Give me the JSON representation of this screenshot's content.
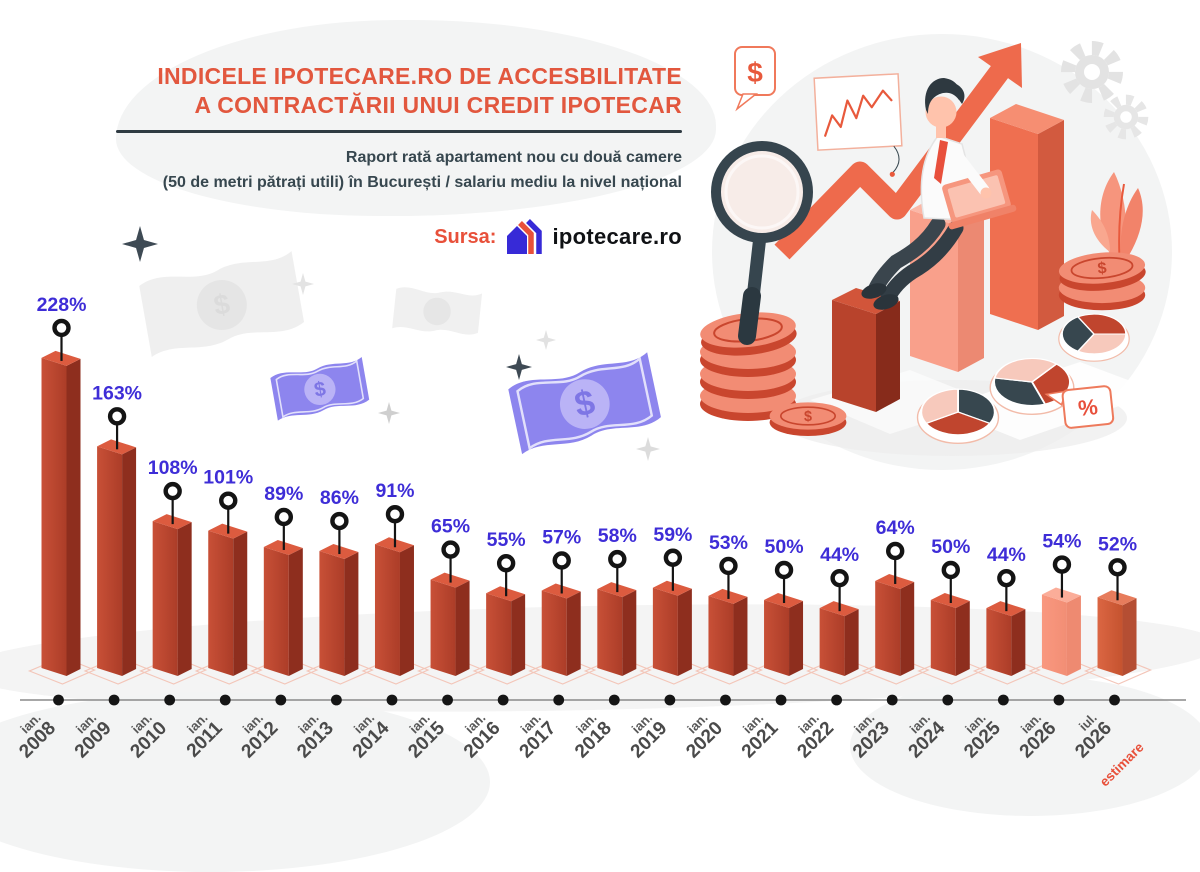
{
  "header": {
    "title_line1": "INDICELE IPOTECARE.RO DE ACCESBILITATE",
    "title_line2": "A CONTRACTĂRII UNUI CREDIT IPOTECAR",
    "subtitle_line1": "Raport rată apartament nou cu două camere",
    "subtitle_line2": "(50 de metri pătrați utili) în București / salariu mediu la nivel național",
    "source_label": "Sursa:",
    "source_name": "ipotecare.ro"
  },
  "colors": {
    "accent_coral": "#E2573E",
    "accent_red": "#E8503A",
    "value_label": "#3E2DD7",
    "axis_label": "#4A4A4A",
    "axis_label_month": "#575757",
    "estimare": "#E8503A",
    "timeline": "#8A8A8A",
    "dot": "#151515",
    "pin": "#141414",
    "base_diamond": "#F3C6B9",
    "bar_regular": {
      "left": "#C85037",
      "left_dark": "#AC3D28",
      "right": "#8E2E1E",
      "top": "#DC5B3F"
    },
    "bar_light": {
      "left": "#F9987F",
      "left_dark": "#F28E75",
      "right": "#EE8A71",
      "top": "#FBAD99"
    },
    "bar_medium": {
      "left": "#DB6643",
      "left_dark": "#C5532F",
      "right": "#B54E33",
      "top": "#E77C5C"
    }
  },
  "icons": [
    "house-logo-icon",
    "magnifier-icon",
    "growth-arrow-icon",
    "coin-stack-icon",
    "pie-chart-icon",
    "gear-icon",
    "dollar-bubble-icon",
    "line-chart-card-icon",
    "percent-tag-icon",
    "banknote-icon",
    "sparkle-icon",
    "analyst-figure"
  ],
  "chart_data": {
    "type": "bar",
    "title": "Indicele ipotecare.ro de accesbilitate a contractării unui credit ipotecar",
    "unit": "%",
    "categories": [
      "ian. 2008",
      "ian. 2009",
      "ian. 2010",
      "ian. 2011",
      "ian. 2012",
      "ian. 2013",
      "ian. 2014",
      "ian. 2015",
      "ian. 2016",
      "ian. 2017",
      "ian. 2018",
      "ian. 2019",
      "ian. 2020",
      "ian. 2021",
      "ian. 2022",
      "ian. 2023",
      "ian. 2024",
      "ian. 2025",
      "ian. 2026",
      "iul. 2026"
    ],
    "values": [
      228,
      163,
      108,
      101,
      89,
      86,
      91,
      65,
      55,
      57,
      58,
      59,
      53,
      50,
      44,
      64,
      50,
      44,
      54,
      52
    ],
    "ylim": [
      0,
      240
    ],
    "grid": false,
    "legend": false,
    "annotations": [
      {
        "target": "iul. 2026",
        "text": "estimare"
      }
    ],
    "points": [
      {
        "month": "ian.",
        "year": "2008",
        "value": 228,
        "style": "regular"
      },
      {
        "month": "ian.",
        "year": "2009",
        "value": 163,
        "style": "regular"
      },
      {
        "month": "ian.",
        "year": "2010",
        "value": 108,
        "style": "regular"
      },
      {
        "month": "ian.",
        "year": "2011",
        "value": 101,
        "style": "regular"
      },
      {
        "month": "ian.",
        "year": "2012",
        "value": 89,
        "style": "regular"
      },
      {
        "month": "ian.",
        "year": "2013",
        "value": 86,
        "style": "regular"
      },
      {
        "month": "ian.",
        "year": "2014",
        "value": 91,
        "style": "regular"
      },
      {
        "month": "ian.",
        "year": "2015",
        "value": 65,
        "style": "regular"
      },
      {
        "month": "ian.",
        "year": "2016",
        "value": 55,
        "style": "regular"
      },
      {
        "month": "ian.",
        "year": "2017",
        "value": 57,
        "style": "regular"
      },
      {
        "month": "ian.",
        "year": "2018",
        "value": 58,
        "style": "regular"
      },
      {
        "month": "ian.",
        "year": "2019",
        "value": 59,
        "style": "regular"
      },
      {
        "month": "ian.",
        "year": "2020",
        "value": 53,
        "style": "regular"
      },
      {
        "month": "ian.",
        "year": "2021",
        "value": 50,
        "style": "regular"
      },
      {
        "month": "ian.",
        "year": "2022",
        "value": 44,
        "style": "regular"
      },
      {
        "month": "ian.",
        "year": "2023",
        "value": 64,
        "style": "regular"
      },
      {
        "month": "ian.",
        "year": "2024",
        "value": 50,
        "style": "regular"
      },
      {
        "month": "ian.",
        "year": "2025",
        "value": 44,
        "style": "regular"
      },
      {
        "month": "ian.",
        "year": "2026",
        "value": 54,
        "style": "light"
      },
      {
        "month": "iul.",
        "year": "2026",
        "value": 52,
        "style": "medium",
        "note": "estimare"
      }
    ]
  }
}
